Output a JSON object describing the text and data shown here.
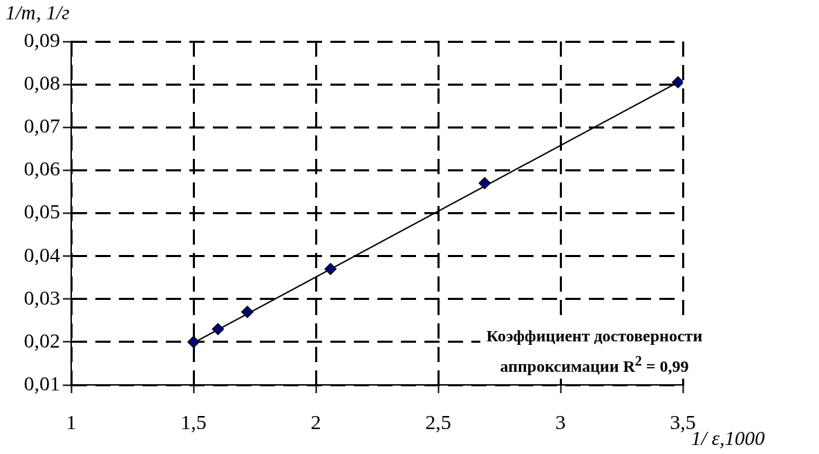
{
  "chart_data": {
    "type": "scatter",
    "xlabel": "1/ ε,1000",
    "ylabel": "1/т, 1/г",
    "xlim": [
      1,
      3.5
    ],
    "xticks": [
      1,
      {
        "value": 1.5,
        "label": "1,5"
      },
      2,
      {
        "value": 2.5,
        "label": "2,5"
      },
      3,
      {
        "value": 3.5,
        "label": "3,5"
      }
    ],
    "ylim": [
      0.01,
      0.09
    ],
    "yticks": [
      {
        "value": 0.01,
        "label": "0,01"
      },
      {
        "value": 0.02,
        "label": "0,02"
      },
      {
        "value": 0.03,
        "label": "0,03"
      },
      {
        "value": 0.04,
        "label": "0,04"
      },
      {
        "value": 0.05,
        "label": "0,05"
      },
      {
        "value": 0.06,
        "label": "0,06"
      },
      {
        "value": 0.07,
        "label": "0,07"
      },
      {
        "value": 0.08,
        "label": "0,08"
      },
      {
        "value": 0.09,
        "label": "0,09"
      }
    ],
    "grid": true,
    "marker": "diamond",
    "series": [
      {
        "type": "scatter",
        "color": "#000080",
        "x": [
          1.5,
          1.6,
          1.72,
          2.06,
          2.69,
          3.48
        ],
        "values": [
          0.02,
          0.023,
          0.027,
          0.037,
          0.057,
          0.0805
        ]
      },
      {
        "type": "line",
        "color": "#000000",
        "marker": "none",
        "x": [
          1.5,
          3.48
        ],
        "values": [
          0.0198,
          0.0805
        ]
      }
    ],
    "annotations": [
      "Коэффициент достоверности аппроксимации R$^{2}$ = 0,99"
    ]
  }
}
